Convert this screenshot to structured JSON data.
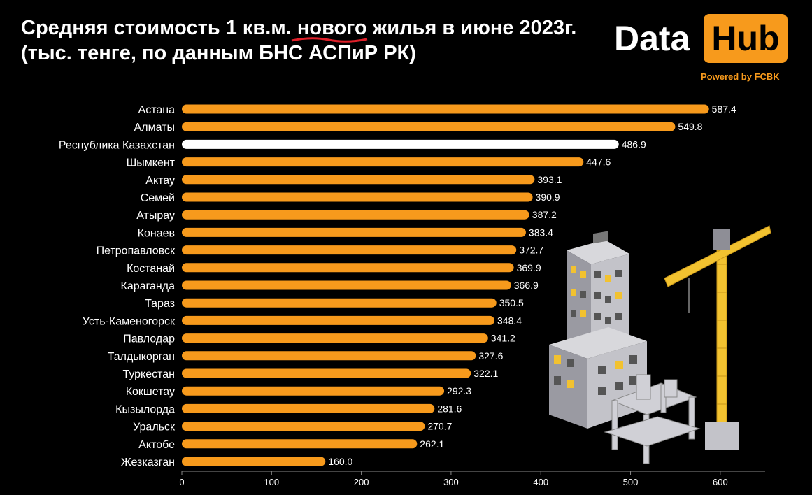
{
  "header": {
    "title_line1_pre": "Средняя стоимость 1 кв.м. ",
    "title_line1_accent": "нового",
    "title_line1_post": " жилья в июне 2023г.",
    "title_line2": "(тыс. тенге, по данным БНС АСПиР РК)"
  },
  "logo": {
    "word1": "Data",
    "word2": "Hub",
    "powered": "Powered by FCBK",
    "accent_color": "#f79a1c"
  },
  "colors": {
    "bar": "#f79a1c",
    "highlight_bar": "#ffffff",
    "background": "#000000",
    "underline": "#e0202a"
  },
  "chart_data": {
    "type": "bar",
    "orientation": "horizontal",
    "title": "Средняя стоимость 1 кв.м. нового жилья в июне 2023г. (тыс. тенге, по данным БНС АСПиР РК)",
    "categories": [
      "Астана",
      "Алматы",
      "Республика Казахстан",
      "Шымкент",
      "Актау",
      "Семей",
      "Атырау",
      "Конаев",
      "Петропавловск",
      "Костанай",
      "Караганда",
      "Тараз",
      "Усть-Каменогорск",
      "Павлодар",
      "Талдыкорган",
      "Туркестан",
      "Кокшетау",
      "Кызылорда",
      "Уральск",
      "Актобе",
      "Жезказган"
    ],
    "values": [
      587.4,
      549.8,
      486.9,
      447.6,
      393.1,
      390.9,
      387.2,
      383.4,
      372.7,
      369.9,
      366.9,
      350.5,
      348.4,
      341.2,
      327.6,
      322.1,
      292.3,
      281.6,
      270.7,
      262.1,
      160.0
    ],
    "value_labels": [
      "587.4",
      "549.8",
      "486.9",
      "447.6",
      "393.1",
      "390.9",
      "387.2",
      "383.4",
      "372.7",
      "369.9",
      "366.9",
      "350.5",
      "348.4",
      "341.2",
      "327.6",
      "322.1",
      "292.3",
      "281.6",
      "270.7",
      "262.1",
      "160.0"
    ],
    "highlight": "Республика Казахстан",
    "xlim": [
      0,
      650
    ],
    "xticks": [
      0,
      100,
      200,
      300,
      400,
      500,
      600
    ],
    "xtick_labels": [
      "0",
      "100",
      "200",
      "300",
      "400",
      "500",
      "600"
    ],
    "grid": false,
    "legend": "none"
  }
}
